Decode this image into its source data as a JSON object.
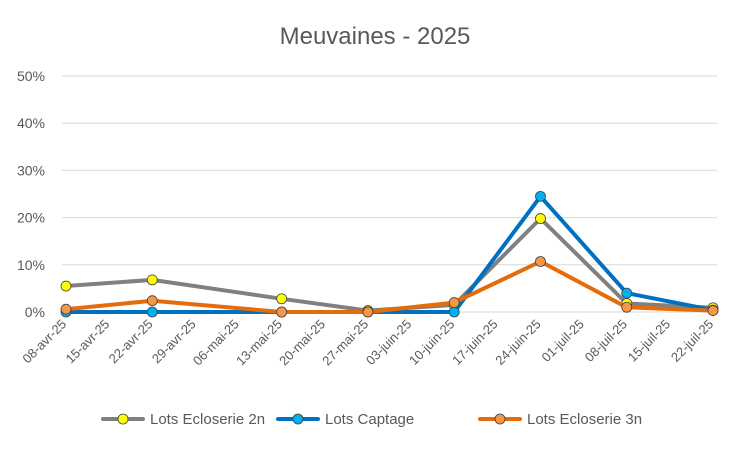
{
  "chart_data": {
    "type": "line",
    "title": "Meuvaines - 2025",
    "xlabel": "",
    "ylabel": "",
    "ylim": [
      0,
      50
    ],
    "y_ticks": [
      "0%",
      "10%",
      "20%",
      "30%",
      "40%",
      "50%"
    ],
    "y_tick_values": [
      0,
      10,
      20,
      30,
      40,
      50
    ],
    "x_ticks": [
      "08-avr-25",
      "15-avr-25",
      "22-avr-25",
      "29-avr-25",
      "06-mai-25",
      "13-mai-25",
      "20-mai-25",
      "27-mai-25",
      "03-juin-25",
      "10-juin-25",
      "17-juin-25",
      "24-juin-25",
      "01-juil-25",
      "08-juil-25",
      "15-juil-25",
      "22-juil-25"
    ],
    "x_range": [
      "2025-04-08",
      "2025-07-22"
    ],
    "grid": true,
    "legend_position": "bottom",
    "series": [
      {
        "name": "Lots Ecloserie 2n",
        "line_color": "#808080",
        "marker_color": "#ffff00",
        "points": [
          {
            "x": "2025-04-08",
            "y": 5.5
          },
          {
            "x": "2025-04-22",
            "y": 6.8
          },
          {
            "x": "2025-05-13",
            "y": 2.8
          },
          {
            "x": "2025-05-27",
            "y": 0.3
          },
          {
            "x": "2025-06-10",
            "y": 1.5
          },
          {
            "x": "2025-06-24",
            "y": 19.8
          },
          {
            "x": "2025-07-08",
            "y": 1.8
          },
          {
            "x": "2025-07-22",
            "y": 0.9
          }
        ]
      },
      {
        "name": "Lots Captage",
        "line_color": "#0070c0",
        "marker_color": "#00b0f0",
        "points": [
          {
            "x": "2025-04-08",
            "y": 0
          },
          {
            "x": "2025-04-22",
            "y": 0
          },
          {
            "x": "2025-05-13",
            "y": 0
          },
          {
            "x": "2025-05-27",
            "y": 0
          },
          {
            "x": "2025-06-10",
            "y": 0
          },
          {
            "x": "2025-06-24",
            "y": 24.5
          },
          {
            "x": "2025-07-08",
            "y": 4.0
          },
          {
            "x": "2025-07-22",
            "y": 0.4
          }
        ]
      },
      {
        "name": "Lots Ecloserie 3n",
        "line_color": "#e46c0a",
        "marker_color": "#f79646",
        "points": [
          {
            "x": "2025-04-08",
            "y": 0.6
          },
          {
            "x": "2025-04-22",
            "y": 2.4
          },
          {
            "x": "2025-05-13",
            "y": 0
          },
          {
            "x": "2025-05-27",
            "y": 0
          },
          {
            "x": "2025-06-10",
            "y": 2.0
          },
          {
            "x": "2025-06-24",
            "y": 10.7
          },
          {
            "x": "2025-07-08",
            "y": 1.0
          },
          {
            "x": "2025-07-22",
            "y": 0.3
          }
        ]
      }
    ]
  }
}
